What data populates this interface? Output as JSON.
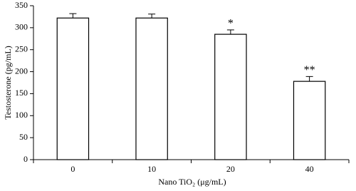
{
  "chart_data": {
    "type": "bar",
    "x_label": "Nano TiO₂ (μg/mL)",
    "y_label": "Testosterone (pg/mL)",
    "categories": [
      "0",
      "10",
      "20",
      "40"
    ],
    "values": [
      322,
      322,
      285,
      178
    ],
    "errors": [
      10,
      9,
      10,
      11
    ],
    "significance": [
      null,
      null,
      "*",
      "**"
    ],
    "color": "#ffffff",
    "ylim": [
      0,
      350
    ],
    "yticks": [
      0,
      50,
      100,
      150,
      200,
      250,
      300,
      350
    ]
  }
}
